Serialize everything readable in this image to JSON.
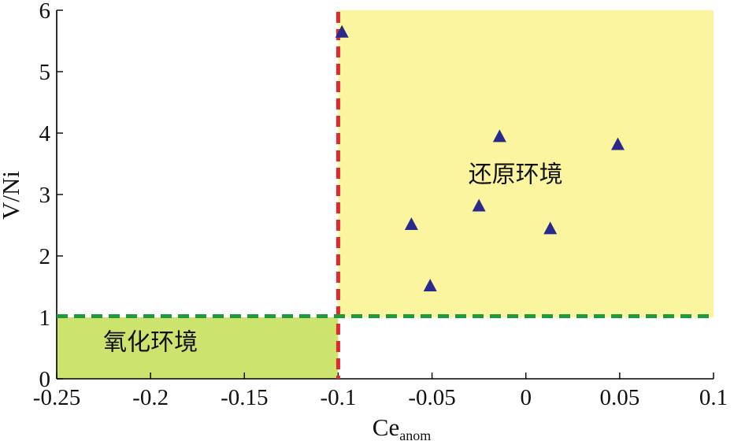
{
  "chart_data": {
    "type": "scatter",
    "xlabel": "Ce",
    "xlabel_sub": "anom",
    "ylabel": "V/Ni",
    "xlim": [
      -0.25,
      0.1
    ],
    "ylim": [
      0,
      6
    ],
    "xticks": [
      -0.25,
      -0.2,
      -0.15,
      -0.1,
      -0.05,
      0,
      0.05,
      0.1
    ],
    "xtick_labels": [
      "-0.25",
      "-0.2",
      "-0.15",
      "-0.1",
      "-0.05",
      "0",
      "0.05",
      "0.1"
    ],
    "yticks": [
      0,
      1,
      2,
      3,
      4,
      5,
      6
    ],
    "ytick_labels": [
      "0",
      "1",
      "2",
      "3",
      "4",
      "5",
      "6"
    ],
    "grid": false,
    "series": [
      {
        "marker": "triangle",
        "color": "#2a2a8c",
        "points": [
          {
            "x": -0.098,
            "y": 5.65
          },
          {
            "x": -0.014,
            "y": 3.95
          },
          {
            "x": 0.049,
            "y": 3.82
          },
          {
            "x": -0.025,
            "y": 2.82
          },
          {
            "x": -0.061,
            "y": 2.52
          },
          {
            "x": 0.013,
            "y": 2.45
          },
          {
            "x": -0.051,
            "y": 1.52
          }
        ]
      }
    ],
    "regions": [
      {
        "label": "还原环境",
        "x_range": [
          -0.1,
          0.1
        ],
        "y_range": [
          1,
          6
        ],
        "color": "#fbf5a0"
      },
      {
        "label": "氧化环境",
        "x_range": [
          -0.25,
          -0.1
        ],
        "y_range": [
          0,
          1
        ],
        "color": "#cce36e"
      }
    ],
    "thresholds": [
      {
        "axis": "x",
        "value": -0.1,
        "color": "#e0282e",
        "style": "dashed"
      },
      {
        "axis": "y",
        "value": 1.02,
        "color": "#1e9a3c",
        "style": "dashed"
      }
    ]
  }
}
